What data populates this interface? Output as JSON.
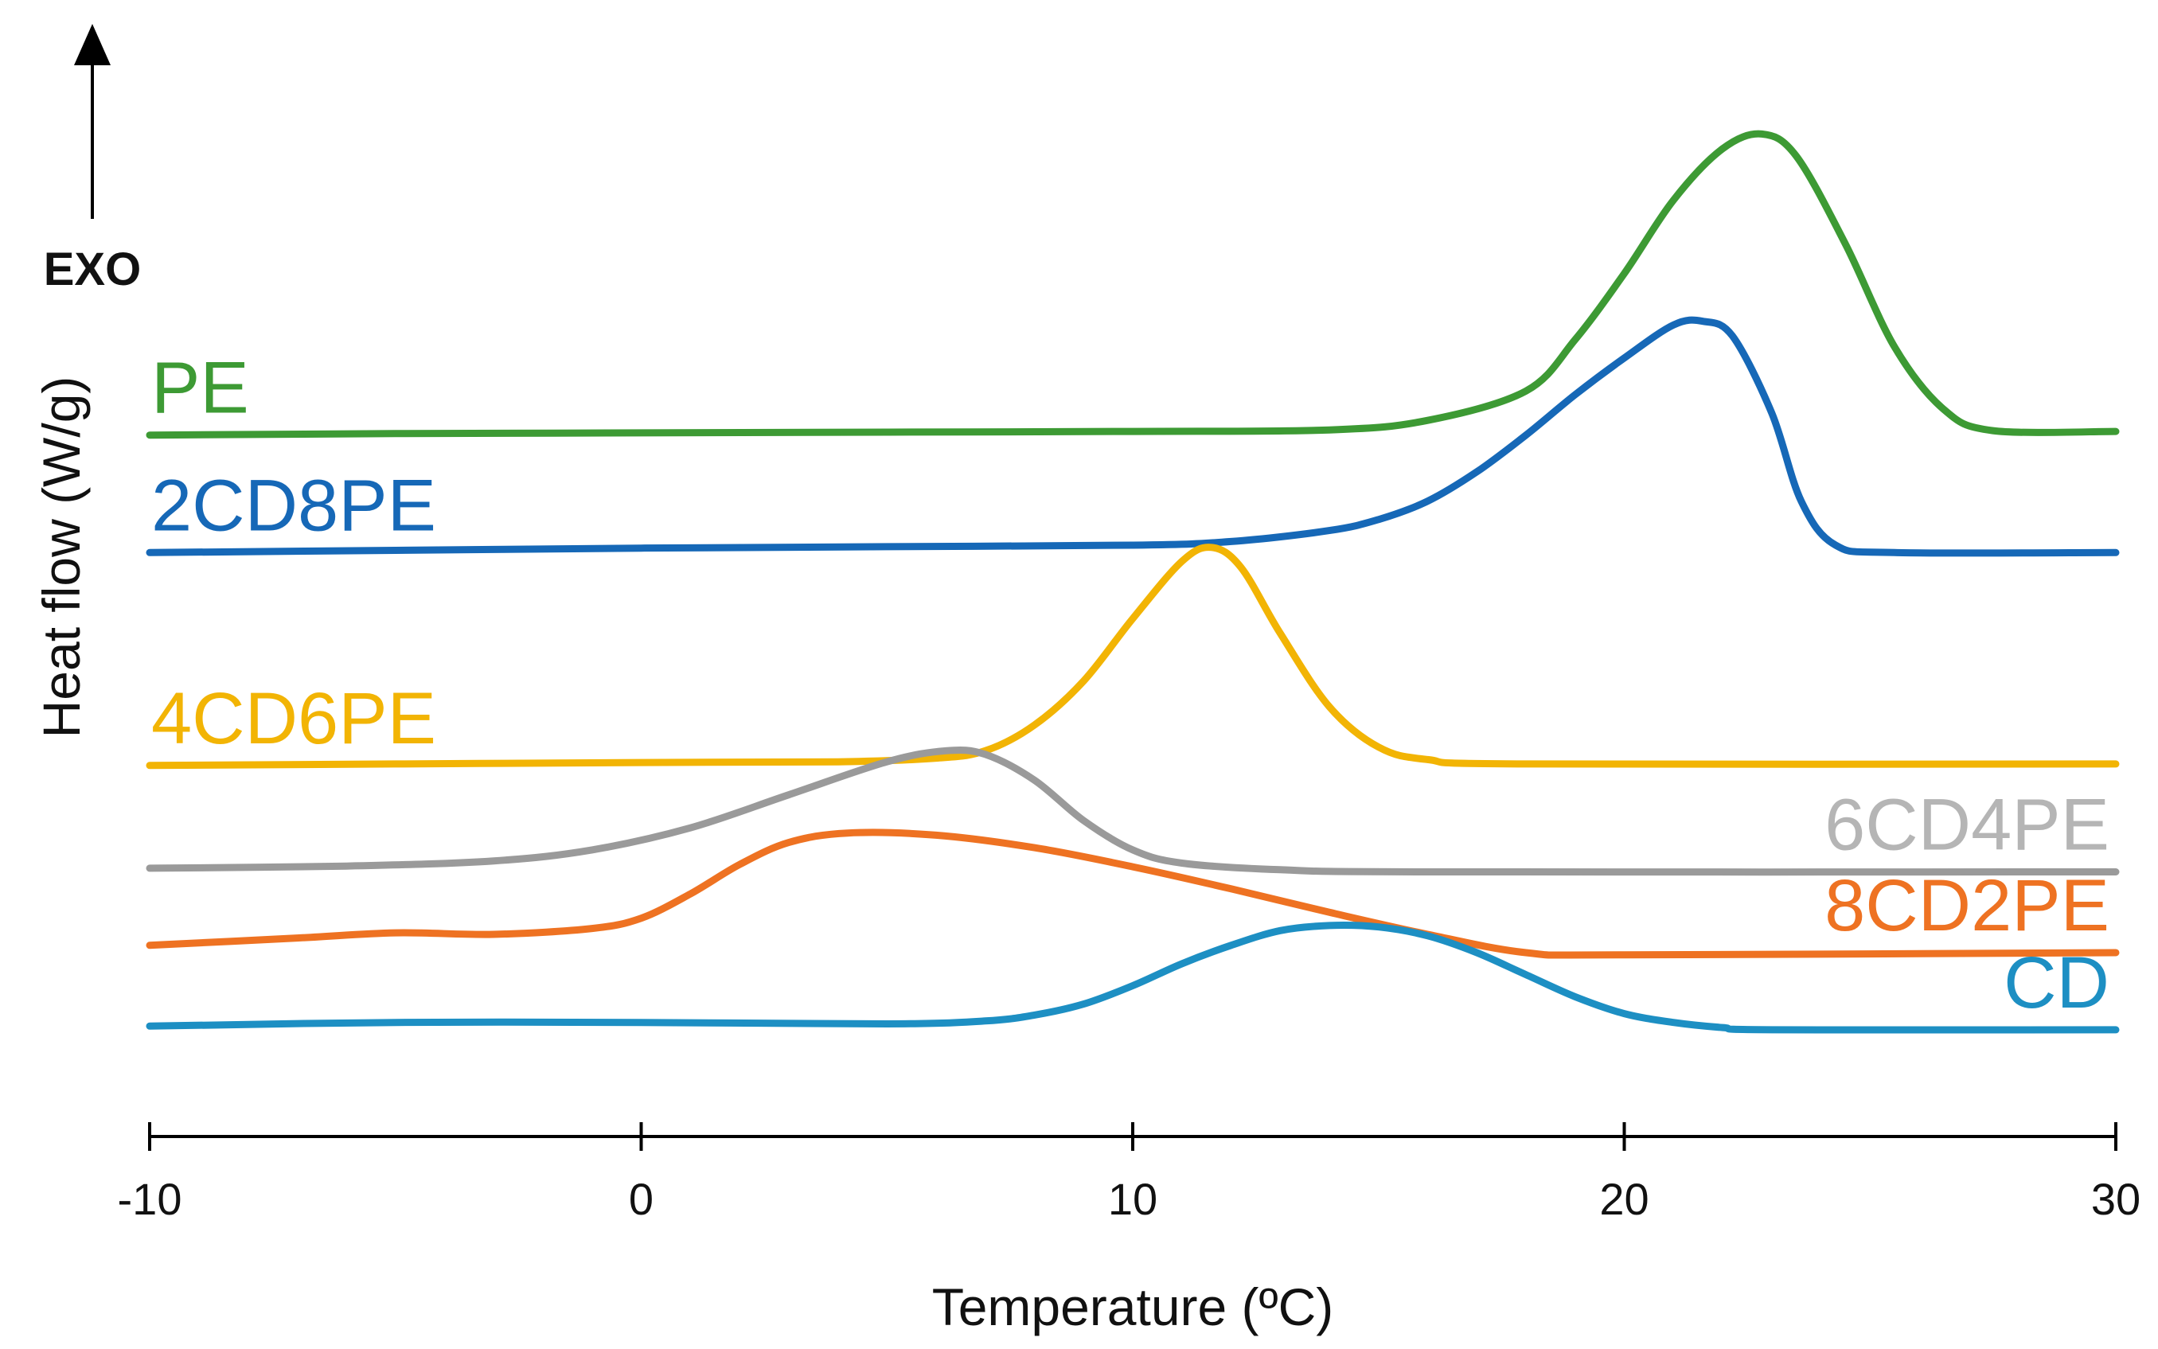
{
  "chart_data": {
    "type": "line",
    "title": "",
    "xlabel": "Temperature (ºC)",
    "ylabel": "Heat flow (W/g)",
    "xlim": [
      -10,
      30
    ],
    "x_ticks": [
      -10,
      0,
      10,
      20,
      30
    ],
    "x_tick_labels": [
      "-10",
      "0",
      "10",
      "20",
      "30"
    ],
    "y_ticks_shown": false,
    "grid": false,
    "annotation": {
      "arrow": "up",
      "label": "EXO"
    },
    "series": [
      {
        "name": "PE",
        "color": "#3d9a34",
        "label_side": "left",
        "points": [
          [
            -10,
            0.0
          ],
          [
            -5,
            0.02
          ],
          [
            0,
            0.03
          ],
          [
            5,
            0.04
          ],
          [
            10,
            0.05
          ],
          [
            14,
            0.07
          ],
          [
            16,
            0.2
          ],
          [
            18,
            0.6
          ],
          [
            19,
            1.3
          ],
          [
            20,
            2.2
          ],
          [
            21,
            3.2
          ],
          [
            22,
            3.9
          ],
          [
            22.8,
            4.1
          ],
          [
            23.5,
            3.8
          ],
          [
            24.5,
            2.6
          ],
          [
            25.5,
            1.2
          ],
          [
            26.5,
            0.35
          ],
          [
            27.5,
            0.06
          ],
          [
            30,
            0.05
          ]
        ]
      },
      {
        "name": "2CD8PE",
        "color": "#1668b7",
        "label_side": "left",
        "points": [
          [
            -10,
            -1.6
          ],
          [
            -5,
            -1.57
          ],
          [
            0,
            -1.54
          ],
          [
            5,
            -1.52
          ],
          [
            10,
            -1.5
          ],
          [
            12,
            -1.45
          ],
          [
            14,
            -1.3
          ],
          [
            15,
            -1.15
          ],
          [
            16,
            -0.9
          ],
          [
            17,
            -0.5
          ],
          [
            18,
            0.0
          ],
          [
            19,
            0.55
          ],
          [
            20,
            1.05
          ],
          [
            21,
            1.5
          ],
          [
            21.6,
            1.55
          ],
          [
            22.2,
            1.35
          ],
          [
            23,
            0.3
          ],
          [
            23.6,
            -0.9
          ],
          [
            24.3,
            -1.5
          ],
          [
            25.5,
            -1.6
          ],
          [
            30,
            -1.6
          ]
        ]
      },
      {
        "name": "4CD6PE",
        "color": "#f2b404",
        "label_side": "left",
        "points": [
          [
            -10,
            -4.5
          ],
          [
            -5,
            -4.48
          ],
          [
            0,
            -4.46
          ],
          [
            4,
            -4.45
          ],
          [
            6,
            -4.4
          ],
          [
            7,
            -4.3
          ],
          [
            8,
            -3.95
          ],
          [
            9,
            -3.35
          ],
          [
            10,
            -2.5
          ],
          [
            11,
            -1.72
          ],
          [
            11.6,
            -1.53
          ],
          [
            12.2,
            -1.8
          ],
          [
            13,
            -2.7
          ],
          [
            14,
            -3.7
          ],
          [
            15,
            -4.25
          ],
          [
            16,
            -4.42
          ],
          [
            18,
            -4.48
          ],
          [
            30,
            -4.48
          ]
        ]
      },
      {
        "name": "6CD4PE",
        "color": "#9a9a9a",
        "label_side": "right",
        "points": [
          [
            -10,
            -5.9
          ],
          [
            -6,
            -5.87
          ],
          [
            -3,
            -5.8
          ],
          [
            -1,
            -5.65
          ],
          [
            1,
            -5.35
          ],
          [
            3,
            -4.9
          ],
          [
            5,
            -4.45
          ],
          [
            6.2,
            -4.3
          ],
          [
            7,
            -4.35
          ],
          [
            8,
            -4.7
          ],
          [
            9,
            -5.25
          ],
          [
            10,
            -5.65
          ],
          [
            11,
            -5.83
          ],
          [
            13,
            -5.92
          ],
          [
            16,
            -5.95
          ],
          [
            30,
            -5.95
          ]
        ]
      },
      {
        "name": "8CD2PE",
        "color": "#ee7222",
        "label_side": "right",
        "points": [
          [
            -10,
            -6.95
          ],
          [
            -7,
            -6.85
          ],
          [
            -5,
            -6.78
          ],
          [
            -3,
            -6.8
          ],
          [
            -1,
            -6.72
          ],
          [
            0,
            -6.58
          ],
          [
            1,
            -6.25
          ],
          [
            2,
            -5.85
          ],
          [
            3,
            -5.55
          ],
          [
            4.2,
            -5.42
          ],
          [
            6,
            -5.45
          ],
          [
            8,
            -5.62
          ],
          [
            10,
            -5.88
          ],
          [
            12,
            -6.18
          ],
          [
            14,
            -6.5
          ],
          [
            16,
            -6.8
          ],
          [
            18,
            -7.05
          ],
          [
            20,
            -7.08
          ],
          [
            30,
            -7.05
          ]
        ]
      },
      {
        "name": "CD",
        "color": "#1d8fc3",
        "label_side": "right",
        "points": [
          [
            -10,
            -8.05
          ],
          [
            -5,
            -8.0
          ],
          [
            0,
            -8.0
          ],
          [
            5,
            -8.02
          ],
          [
            7,
            -7.98
          ],
          [
            8,
            -7.9
          ],
          [
            9,
            -7.75
          ],
          [
            10,
            -7.5
          ],
          [
            11,
            -7.2
          ],
          [
            12,
            -6.95
          ],
          [
            13,
            -6.75
          ],
          [
            14,
            -6.68
          ],
          [
            15,
            -6.7
          ],
          [
            16,
            -6.82
          ],
          [
            17,
            -7.05
          ],
          [
            18,
            -7.35
          ],
          [
            19,
            -7.65
          ],
          [
            20,
            -7.88
          ],
          [
            21,
            -8.0
          ],
          [
            22,
            -8.07
          ],
          [
            23,
            -8.1
          ],
          [
            30,
            -8.1
          ]
        ]
      }
    ]
  }
}
